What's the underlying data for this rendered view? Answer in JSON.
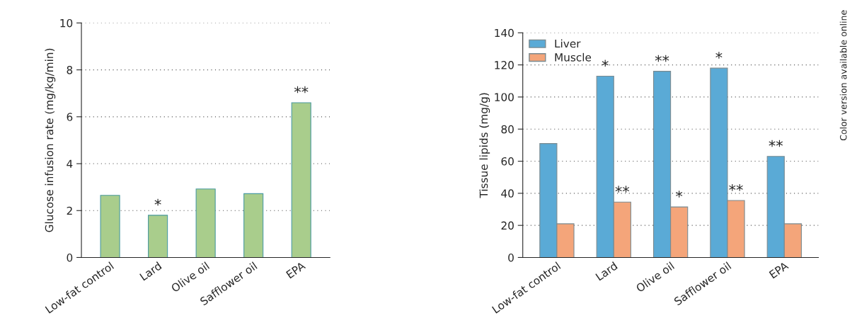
{
  "chart_data": [
    {
      "type": "bar",
      "ylabel": "Glucose infusion rate (mg/kg/min)",
      "categories": [
        "Low-fat control",
        "Lard",
        "Olive oil",
        "Safflower oil",
        "EPA"
      ],
      "values": [
        2.65,
        1.8,
        2.92,
        2.72,
        6.6
      ],
      "color": "#a9cd8c",
      "ylim": [
        0,
        10
      ],
      "yticks": [
        0,
        2,
        4,
        6,
        8,
        10
      ],
      "grid": "y",
      "annotations": [
        {
          "text": "*",
          "x": "Lard",
          "y": 1.8
        },
        {
          "text": "**",
          "x": "EPA",
          "y": 6.6
        }
      ]
    },
    {
      "type": "bar",
      "ylabel": "Tissue lipids (mg/g)",
      "categories": [
        "Low-fat control",
        "Lard",
        "Olive oil",
        "Safflower oil",
        "EPA"
      ],
      "series": [
        {
          "name": "Liver",
          "color": "#5aaad6",
          "values": [
            71,
            113,
            116,
            118,
            63
          ]
        },
        {
          "name": "Muscle",
          "color": "#f4a57a",
          "values": [
            21,
            34.5,
            31.5,
            35.5,
            21
          ]
        }
      ],
      "ylim": [
        0,
        140
      ],
      "yticks": [
        0,
        20,
        40,
        60,
        80,
        100,
        120,
        140
      ],
      "grid": "y",
      "legend": "top left",
      "annotations": [
        {
          "text": "*",
          "x": "Lard",
          "y": 113
        },
        {
          "text": "**",
          "x": "Lard",
          "y": 34.5
        },
        {
          "text": "**",
          "x": "Olive oil",
          "y": 116
        },
        {
          "text": "*",
          "x": "Olive oil",
          "y": 31.5
        },
        {
          "text": "*",
          "x": "Safflower oil",
          "y": 118
        },
        {
          "text": "**",
          "x": "Safflower oil",
          "y": 35.5
        },
        {
          "text": "**",
          "x": "EPA",
          "y": 63
        },
        "Color version available online"
      ]
    }
  ]
}
